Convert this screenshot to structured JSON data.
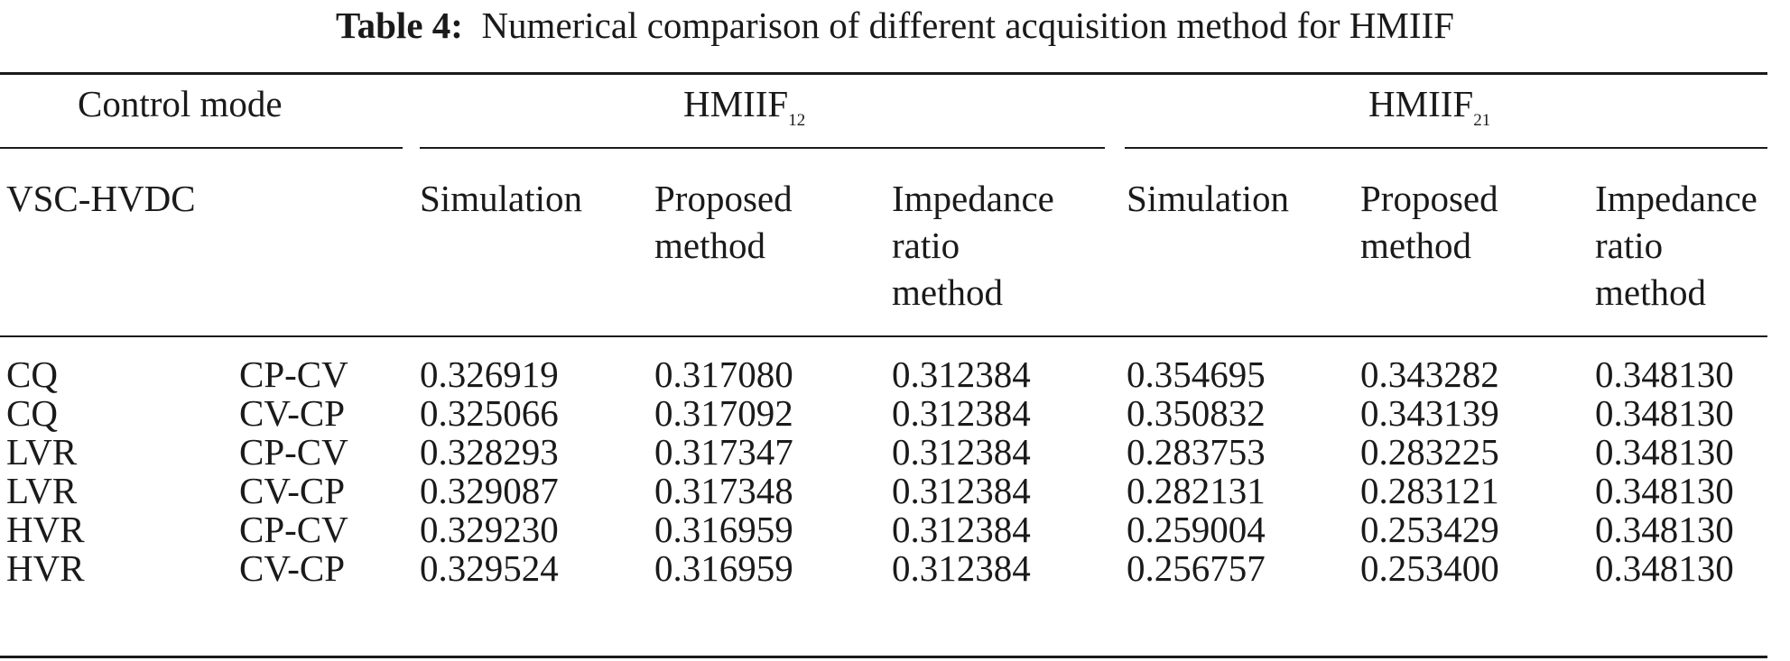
{
  "caption": {
    "label": "Table 4:",
    "text": "Numerical comparison of different acquisition method for HMIIF"
  },
  "header": {
    "control_mode": "Control mode",
    "group1": {
      "base": "HMIIF",
      "sub": "12"
    },
    "group2": {
      "base": "HMIIF",
      "sub": "21"
    },
    "vsc_hvdc": "VSC-HVDC",
    "columns": [
      [
        "Simulation"
      ],
      [
        "Proposed",
        "method"
      ],
      [
        "Impedance",
        "ratio",
        "method"
      ],
      [
        "Simulation"
      ],
      [
        "Proposed",
        "method"
      ],
      [
        "Impedance",
        "ratio",
        "method"
      ]
    ]
  },
  "rows": [
    {
      "mode": "CQ",
      "sub": "CP-CV",
      "values": [
        "0.326919",
        "0.317080",
        "0.312384",
        "0.354695",
        "0.343282",
        "0.348130"
      ]
    },
    {
      "mode": "CQ",
      "sub": "CV-CP",
      "values": [
        "0.325066",
        "0.317092",
        "0.312384",
        "0.350832",
        "0.343139",
        "0.348130"
      ]
    },
    {
      "mode": "LVR",
      "sub": "CP-CV",
      "values": [
        "0.328293",
        "0.317347",
        "0.312384",
        "0.283753",
        "0.283225",
        "0.348130"
      ]
    },
    {
      "mode": "LVR",
      "sub": "CV-CP",
      "values": [
        "0.329087",
        "0.317348",
        "0.312384",
        "0.282131",
        "0.283121",
        "0.348130"
      ]
    },
    {
      "mode": "HVR",
      "sub": "CP-CV",
      "values": [
        "0.329230",
        "0.316959",
        "0.312384",
        "0.259004",
        "0.253429",
        "0.348130"
      ]
    },
    {
      "mode": "HVR",
      "sub": "CV-CP",
      "values": [
        "0.329524",
        "0.316959",
        "0.312384",
        "0.256757",
        "0.253400",
        "0.348130"
      ]
    }
  ]
}
